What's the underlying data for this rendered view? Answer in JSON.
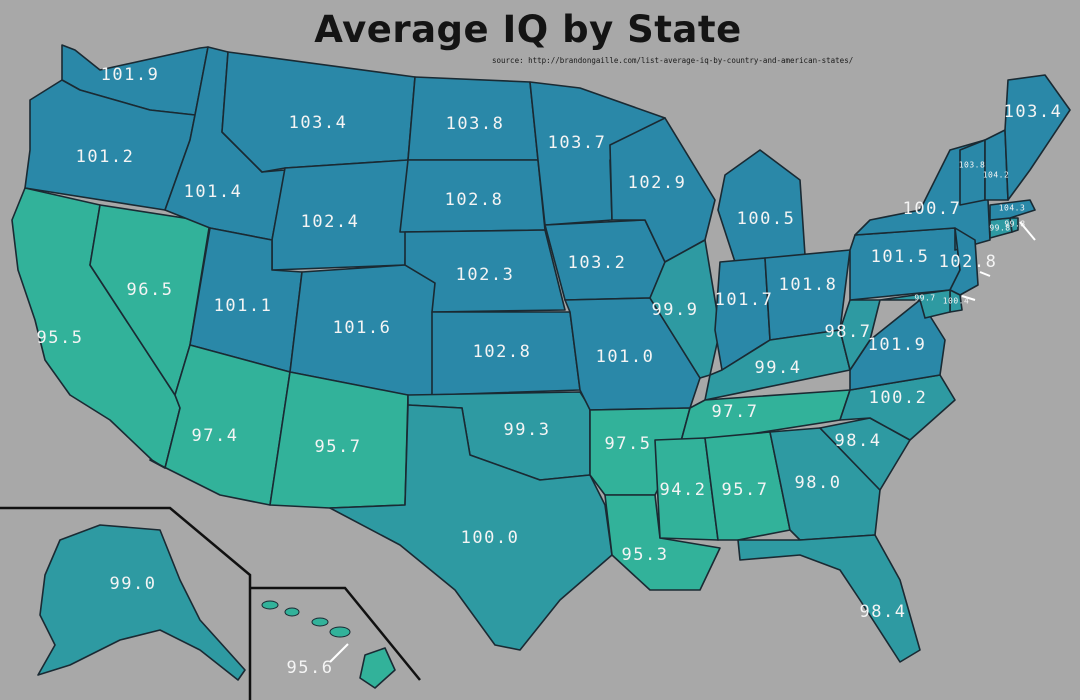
{
  "title": "Average IQ by State",
  "source": "source: http://brandongaille.com/list-average-iq-by-country-and-american-states/",
  "colors": {
    "background": "#a8a8a8",
    "high": "#2a88a8",
    "mid": "#2e9aa2",
    "low": "#32b29a",
    "border": "#1a2a33",
    "label": "#f4f4f4"
  },
  "states": [
    {
      "key": "WA",
      "value": "101.9"
    },
    {
      "key": "OR",
      "value": "101.2"
    },
    {
      "key": "CA",
      "value": "95.5"
    },
    {
      "key": "NV",
      "value": "96.5"
    },
    {
      "key": "ID",
      "value": "101.4"
    },
    {
      "key": "MT",
      "value": "103.4"
    },
    {
      "key": "WY",
      "value": "102.4"
    },
    {
      "key": "UT",
      "value": "101.1"
    },
    {
      "key": "CO",
      "value": "101.6"
    },
    {
      "key": "AZ",
      "value": "97.4"
    },
    {
      "key": "NM",
      "value": "95.7"
    },
    {
      "key": "ND",
      "value": "103.8"
    },
    {
      "key": "SD",
      "value": "102.8"
    },
    {
      "key": "NE",
      "value": "102.3"
    },
    {
      "key": "KS",
      "value": "102.8"
    },
    {
      "key": "OK",
      "value": "99.3"
    },
    {
      "key": "TX",
      "value": "100.0"
    },
    {
      "key": "MN",
      "value": "103.7"
    },
    {
      "key": "IA",
      "value": "103.2"
    },
    {
      "key": "MO",
      "value": "101.0"
    },
    {
      "key": "AR",
      "value": "97.5"
    },
    {
      "key": "LA",
      "value": "95.3"
    },
    {
      "key": "WI",
      "value": "102.9"
    },
    {
      "key": "IL",
      "value": "99.9"
    },
    {
      "key": "MI",
      "value": "100.5"
    },
    {
      "key": "IN",
      "value": "101.7"
    },
    {
      "key": "OH",
      "value": "101.8"
    },
    {
      "key": "KY",
      "value": "99.4"
    },
    {
      "key": "TN",
      "value": "97.7"
    },
    {
      "key": "MS",
      "value": "94.2"
    },
    {
      "key": "AL",
      "value": "95.7"
    },
    {
      "key": "GA",
      "value": "98.0"
    },
    {
      "key": "FL",
      "value": "98.4"
    },
    {
      "key": "SC",
      "value": "98.4"
    },
    {
      "key": "NC",
      "value": "100.2"
    },
    {
      "key": "VA",
      "value": "101.9"
    },
    {
      "key": "WV",
      "value": "98.7"
    },
    {
      "key": "PA",
      "value": "101.5"
    },
    {
      "key": "NY",
      "value": "100.7"
    },
    {
      "key": "NJ",
      "value": "102.8"
    },
    {
      "key": "DE",
      "value": "100.4"
    },
    {
      "key": "MD",
      "value": "99.7"
    },
    {
      "key": "CT",
      "value": "99.8"
    },
    {
      "key": "RI",
      "value": "99.8"
    },
    {
      "key": "MA",
      "value": "104.3"
    },
    {
      "key": "VT",
      "value": "103.8"
    },
    {
      "key": "NH",
      "value": "104.2"
    },
    {
      "key": "ME",
      "value": "103.4"
    },
    {
      "key": "AK",
      "value": "99.0"
    },
    {
      "key": "HI",
      "value": "95.6"
    }
  ]
}
